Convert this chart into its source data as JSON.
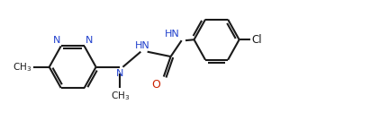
{
  "background_color": "#ffffff",
  "bond_color": "#1a1a1a",
  "nitrogen_color": "#2040cc",
  "oxygen_color": "#cc2200",
  "bond_lw": 1.5,
  "figsize": [
    4.12,
    1.45
  ],
  "dpi": 100,
  "xlim": [
    0,
    9.5
  ],
  "ylim": [
    0,
    3.2
  ]
}
